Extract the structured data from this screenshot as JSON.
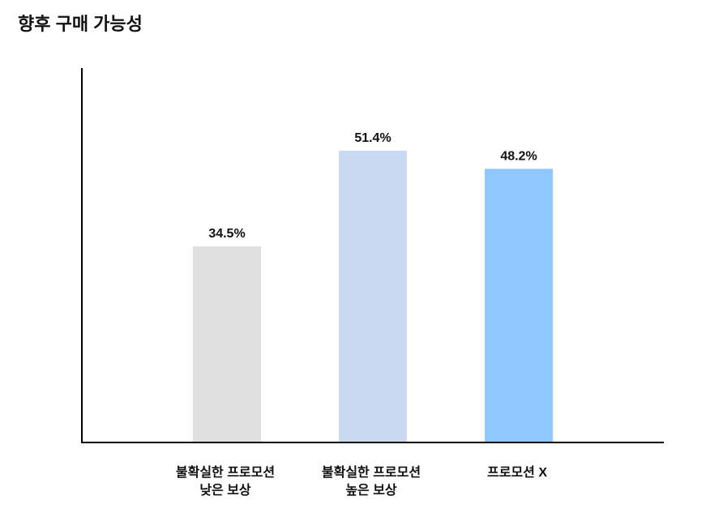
{
  "chart_data": {
    "type": "bar",
    "title": "향후 구매 가능성",
    "categories": [
      [
        "불확실한 프로모션",
        "낮은 보상"
      ],
      [
        "불확실한 프로모션",
        "높은 보상"
      ],
      [
        "프로모션 X"
      ]
    ],
    "values": [
      34.5,
      51.4,
      48.2
    ],
    "value_labels": [
      "34.5%",
      "51.4%",
      "48.2%"
    ],
    "colors": [
      "#e0e0e0",
      "#c9d9f2",
      "#8fc8ff"
    ],
    "ylim": [
      0,
      66
    ]
  }
}
